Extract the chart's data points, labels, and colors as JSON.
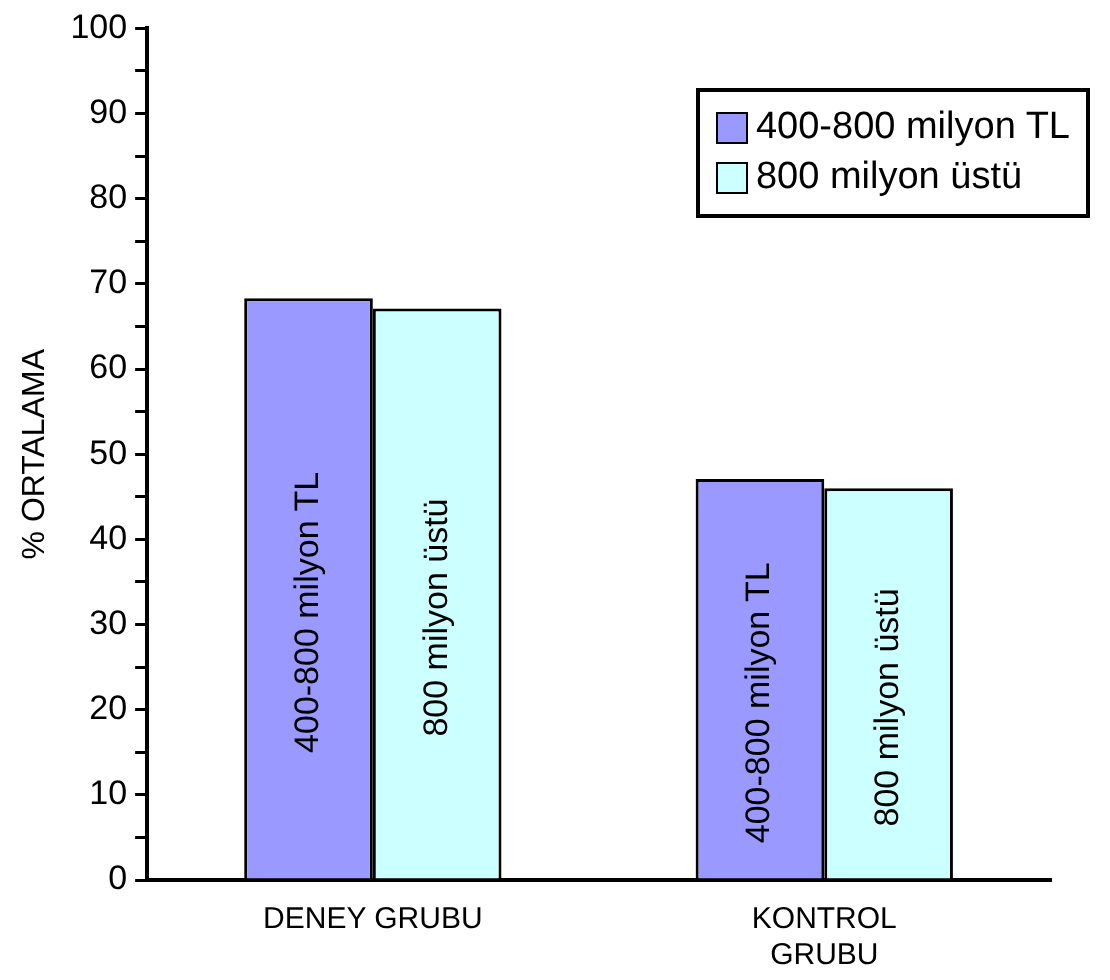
{
  "chart_data": {
    "type": "bar",
    "ylabel": "% ORTALAMA",
    "categories": [
      "DENEY GRUBU",
      "KONTROL GRUBU"
    ],
    "series": [
      {
        "name": "400-800 milyon TL",
        "color": "#9999ff",
        "values": [
          68.3,
          47.1
        ]
      },
      {
        "name": "800 milyon üstü",
        "color": "#ccffff",
        "values": [
          67.1,
          46.0
        ]
      }
    ],
    "ylim": [
      0,
      100
    ],
    "yticks": [
      0,
      {
        "value": 5,
        "label": null
      },
      10,
      {
        "value": 15,
        "label": null
      },
      20,
      {
        "value": 25,
        "label": null
      },
      30,
      {
        "value": 35,
        "label": null
      },
      40,
      {
        "value": 45,
        "label": null
      },
      50,
      {
        "value": 55,
        "label": null
      },
      60,
      {
        "value": 65,
        "label": null
      },
      70,
      {
        "value": 75,
        "label": null
      },
      80,
      {
        "value": 85,
        "label": null
      },
      90,
      {
        "value": 95,
        "label": null
      },
      100
    ],
    "grid": false,
    "legend": "top right"
  }
}
